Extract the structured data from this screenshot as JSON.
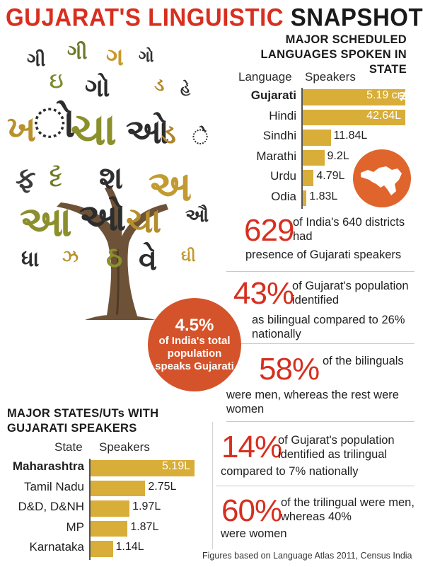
{
  "title": {
    "part1": "GUJARAT'S LINGUISTIC",
    "part2": "SNAPSHOT"
  },
  "languages_section": {
    "heading_line1": "MAJOR SCHEDULED",
    "heading_line2": "LANGUAGES SPOKEN IN STATE",
    "col_language": "Language",
    "col_speakers": "Speakers"
  },
  "states_section": {
    "heading_line1": "MAJOR STATES/UTs WITH",
    "heading_line2": "GUJARATI SPEAKERS",
    "col_state": "State",
    "col_speakers": "Speakers"
  },
  "chart_data": [
    {
      "type": "bar",
      "title": "MAJOR SCHEDULED LANGUAGES SPOKEN IN STATE",
      "categories": [
        "Gujarati",
        "Hindi",
        "Sindhi",
        "Marathi",
        "Urdu",
        "Odia"
      ],
      "values": [
        519,
        42.64,
        11.84,
        9.2,
        4.79,
        1.83
      ],
      "value_unit": "lakh",
      "value_labels": [
        "5.19 cr",
        "42.64L",
        "11.84L",
        "9.2L",
        "4.79L",
        "1.83L"
      ],
      "axis_break_on_first_bar": true,
      "bar_color": "#d8ad38"
    },
    {
      "type": "bar",
      "title": "MAJOR STATES/UTs WITH GUJARATI SPEAKERS",
      "categories": [
        "Maharashtra",
        "Tamil Nadu",
        "D&D, D&NH",
        "MP",
        "Karnataka"
      ],
      "values": [
        5.19,
        2.75,
        1.97,
        1.87,
        1.14
      ],
      "value_unit": "lakh",
      "value_labels": [
        "5.19L",
        "2.75L",
        "1.97L",
        "1.87L",
        "1.14L"
      ],
      "bar_color": "#d8ad38"
    }
  ],
  "circle": {
    "percent": "4.5%",
    "text": "of India's total population speaks Gujarati"
  },
  "stats": [
    {
      "number": "629",
      "text": "of India's 640 districts had presence of Gujarati speakers"
    },
    {
      "number": "43%",
      "text": "of Gujarat's population identified as bilingual compared to 26% nationally"
    },
    {
      "number": "58%",
      "text": "of the bilinguals were men, whereas the rest were women"
    },
    {
      "number": "14%",
      "text": "of Gujarat's population identified as trilingual compared to 7% nationally"
    },
    {
      "number": "60%",
      "text": "of the trilingual were men, whereas 40% were women"
    }
  ],
  "footer": "Figures based on Language Atlas 2011, Census India",
  "colors": {
    "accent_red": "#d72f1f",
    "bar_gold": "#d8ad38",
    "circle_orange": "#d5532a",
    "map_orange": "#e0652d"
  },
  "icons": {
    "tree": "tree-of-gujarati-letters-icon",
    "map": "gujarat-map-icon"
  }
}
